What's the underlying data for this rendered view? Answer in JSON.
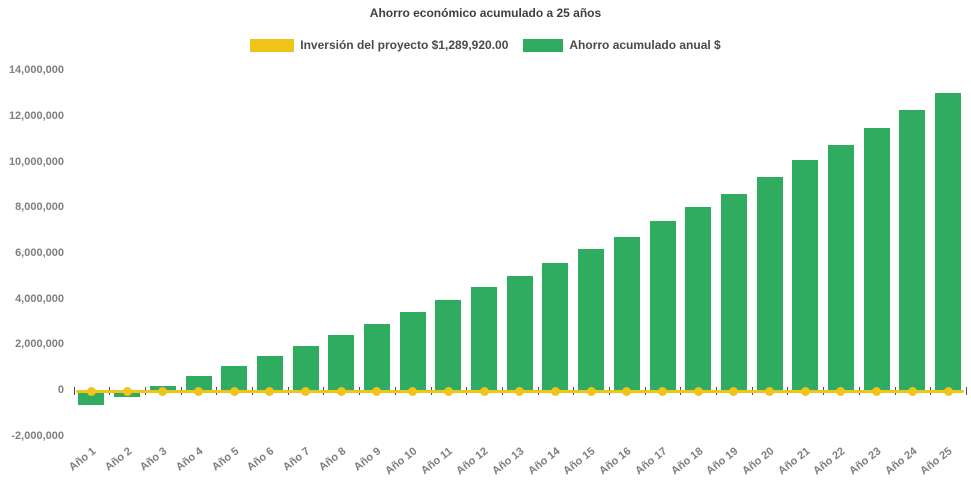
{
  "title": "Ahorro económico acumulado a 25 años",
  "legend": {
    "investment": {
      "label": "Inversión del proyecto $1,289,920.00",
      "color": "#F0C419"
    },
    "savings": {
      "label": "Ahorro acumulado anual $",
      "color": "#2FAC60"
    }
  },
  "chart_data": {
    "type": "bar",
    "title": "Ahorro económico acumulado a 25 años",
    "categories": [
      "Año 1",
      "Año 2",
      "Año 3",
      "Año 4",
      "Año 5",
      "Año 6",
      "Año 7",
      "Año 8",
      "Año 9",
      "Año 10",
      "Año 11",
      "Año 12",
      "Año 13",
      "Año 14",
      "Año 15",
      "Año 16",
      "Año 17",
      "Año 18",
      "Año 19",
      "Año 20",
      "Año 21",
      "Año 22",
      "Año 23",
      "Año 24",
      "Año 25"
    ],
    "series": [
      {
        "name": "Inversión del proyecto $1,289,920.00",
        "type": "line",
        "color": "#F0C419",
        "marker": "circle",
        "plotted_constant_value": 0
      },
      {
        "name": "Ahorro acumulado anual $",
        "type": "bar",
        "color": "#2FAC60",
        "values": [
          -650000,
          -290000,
          190000,
          620000,
          1040000,
          1490000,
          1910000,
          2420000,
          2900000,
          3400000,
          3940000,
          4490000,
          5000000,
          5550000,
          6170000,
          6720000,
          7390000,
          8000000,
          8600000,
          9320000,
          10060000,
          10710000,
          11460000,
          12260000,
          13030000
        ]
      }
    ],
    "ylim": [
      -2000000,
      14000000
    ],
    "y_tick_step": 2000000,
    "y_tick_labels": [
      "-2,000,000",
      "0",
      "2,000,000",
      "4,000,000",
      "6,000,000",
      "8,000,000",
      "10,000,000",
      "12,000,000",
      "14,000,000"
    ],
    "grid": false,
    "legend_position": "top",
    "xlabel": "",
    "ylabel": ""
  }
}
